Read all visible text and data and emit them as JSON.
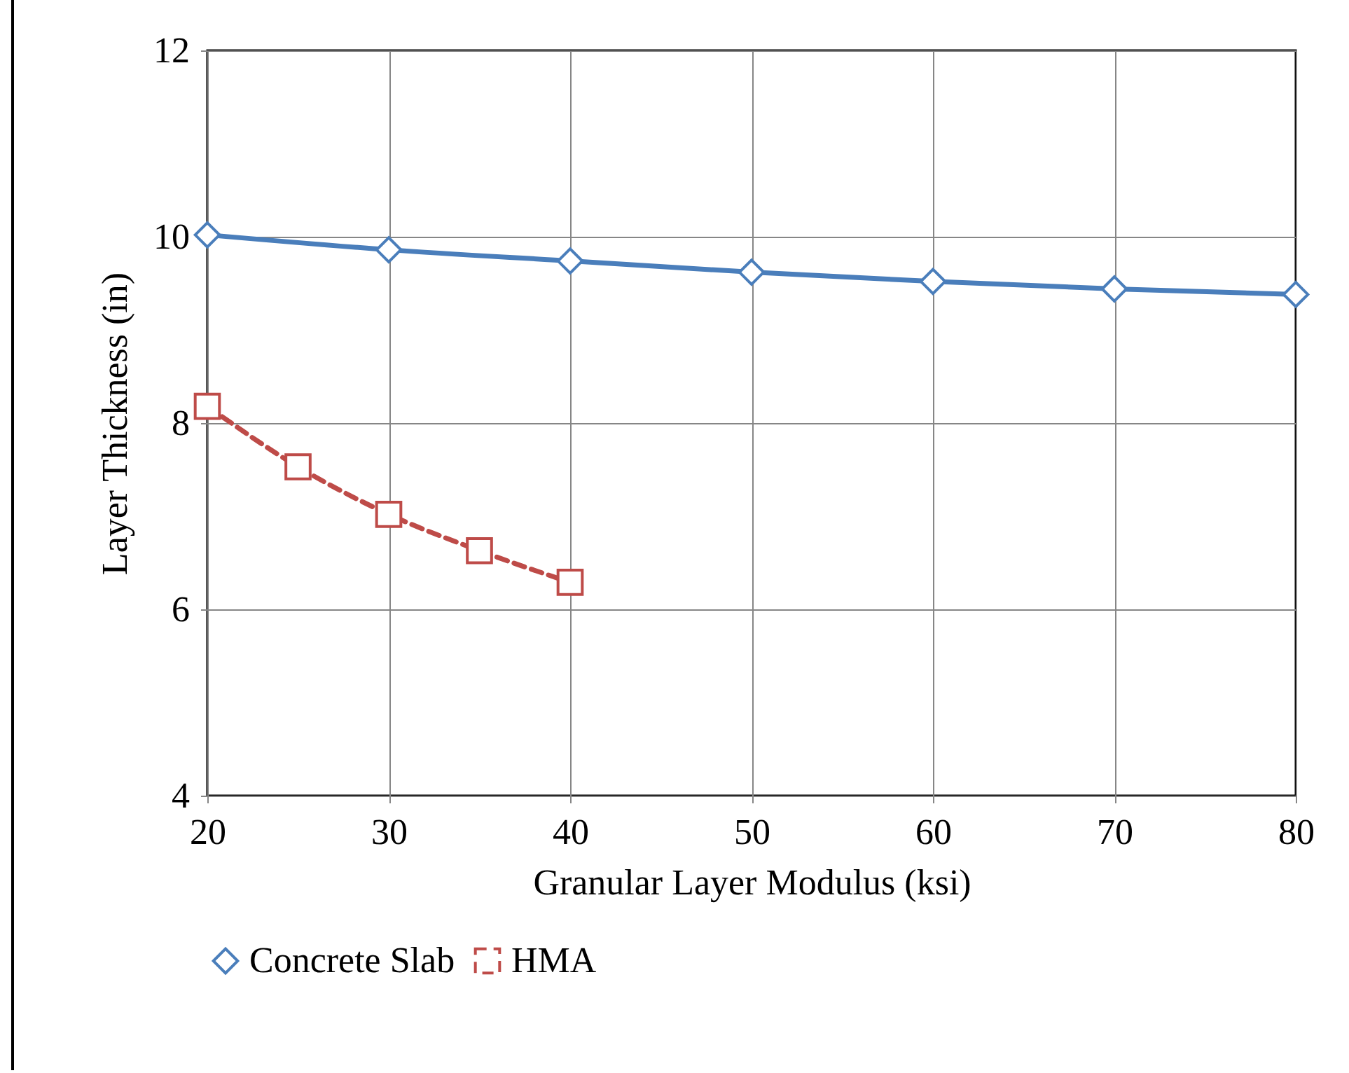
{
  "chart_data": {
    "type": "line",
    "xlabel": "Granular Layer Modulus (ksi)",
    "ylabel": "Layer Thickness (in)",
    "xlim": [
      20,
      80
    ],
    "xticks": [
      20,
      30,
      40,
      50,
      60,
      70,
      80
    ],
    "ylim": [
      4,
      12
    ],
    "yticks": [
      4,
      6,
      8,
      10,
      12
    ],
    "grid": true,
    "legend": "bottom",
    "series": [
      {
        "name": "Concrete Slab",
        "color": "#4a7ebb",
        "marker": "diamond",
        "line_style": "solid",
        "x": [
          20,
          30,
          40,
          50,
          60,
          70,
          80
        ],
        "values": [
          10.02,
          9.86,
          9.74,
          9.62,
          9.52,
          9.44,
          9.38
        ]
      },
      {
        "name": "HMA",
        "color": "#be4b48",
        "marker": "square",
        "line_style": "dashed",
        "x": [
          20,
          25,
          30,
          35,
          40
        ],
        "values": [
          8.18,
          7.53,
          7.02,
          6.63,
          6.29
        ]
      }
    ]
  }
}
